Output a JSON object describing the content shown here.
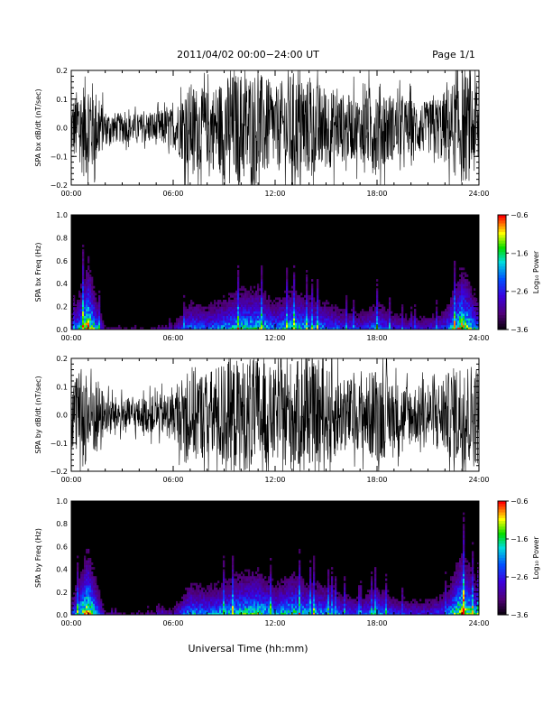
{
  "header": {
    "title": "2011/04/02  00:00−24:00 UT",
    "page_label": "Page 1/1"
  },
  "chart_data": [
    {
      "type": "line",
      "ylabel": "SPA bx dB/dt (nT/sec)",
      "ylim": [
        -0.2,
        0.2
      ],
      "yticks": [
        "−0.2",
        "−0.1",
        "0.0",
        "0.1",
        "0.2"
      ],
      "xticks": [
        "00:00",
        "06:00",
        "12:00",
        "18:00",
        "24:00"
      ],
      "xlim_hours": [
        0,
        24
      ],
      "series": [
        {
          "x_hours": [
            0,
            1,
            2,
            3,
            4,
            5,
            6,
            7,
            8,
            9,
            10,
            11,
            12,
            13,
            14,
            15,
            16,
            17,
            18,
            19,
            20,
            21,
            22,
            23,
            24
          ],
          "envelope_amplitude": [
            0.1,
            0.2,
            0.06,
            0.05,
            0.05,
            0.06,
            0.07,
            0.16,
            0.13,
            0.18,
            0.2,
            0.2,
            0.14,
            0.2,
            0.17,
            0.15,
            0.12,
            0.11,
            0.17,
            0.11,
            0.1,
            0.09,
            0.13,
            0.2,
            0.17
          ]
        }
      ]
    },
    {
      "type": "heatmap",
      "ylabel": "SPA bx Freq (Hz)",
      "ylim": [
        0.0,
        1.0
      ],
      "yticks": [
        "0.0",
        "0.2",
        "0.4",
        "0.6",
        "0.8",
        "1.0"
      ],
      "xticks": [
        "00:00",
        "06:00",
        "12:00",
        "18:00",
        "24:00"
      ],
      "xlim_hours": [
        0,
        24
      ],
      "colorbar": {
        "label": "Log₁₀ Power",
        "ticks": [
          "−0.6",
          "−1.6",
          "−2.6",
          "−3.6"
        ],
        "range": [
          -3.6,
          -0.6
        ]
      },
      "hourly_activity": [
        0.35,
        1.0,
        0.2,
        0.16,
        0.15,
        0.2,
        0.25,
        0.55,
        0.5,
        0.6,
        0.7,
        0.72,
        0.55,
        0.7,
        0.6,
        0.55,
        0.45,
        0.4,
        0.55,
        0.4,
        0.35,
        0.35,
        0.45,
        0.95,
        0.55
      ]
    },
    {
      "type": "line",
      "ylabel": "SPA by dB/dt (nT/sec)",
      "ylim": [
        -0.2,
        0.2
      ],
      "yticks": [
        "−0.2",
        "−0.1",
        "0.0",
        "0.1",
        "0.2"
      ],
      "xticks": [
        "00:00",
        "06:00",
        "12:00",
        "18:00",
        "24:00"
      ],
      "xlim_hours": [
        0,
        24
      ],
      "series": [
        {
          "x_hours": [
            0,
            1,
            2,
            3,
            4,
            5,
            6,
            7,
            8,
            9,
            10,
            11,
            12,
            13,
            14,
            15,
            16,
            17,
            18,
            19,
            20,
            21,
            22,
            23,
            24
          ],
          "envelope_amplitude": [
            0.12,
            0.2,
            0.07,
            0.06,
            0.06,
            0.07,
            0.08,
            0.18,
            0.15,
            0.2,
            0.2,
            0.2,
            0.16,
            0.2,
            0.18,
            0.17,
            0.14,
            0.12,
            0.18,
            0.12,
            0.11,
            0.1,
            0.14,
            0.2,
            0.18
          ]
        }
      ]
    },
    {
      "type": "heatmap",
      "ylabel": "SPA by Freq (Hz)",
      "ylim": [
        0.0,
        1.0
      ],
      "yticks": [
        "0.0",
        "0.2",
        "0.4",
        "0.6",
        "0.8",
        "1.0"
      ],
      "xticks": [
        "00:00",
        "06:00",
        "12:00",
        "18:00",
        "24:00"
      ],
      "xlim_hours": [
        0,
        24
      ],
      "colorbar": {
        "label": "Log₁₀ Power",
        "ticks": [
          "−0.6",
          "−1.6",
          "−2.6",
          "−3.6"
        ],
        "range": [
          -3.6,
          -0.6
        ]
      },
      "hourly_activity": [
        0.4,
        1.0,
        0.22,
        0.18,
        0.17,
        0.22,
        0.28,
        0.6,
        0.55,
        0.62,
        0.72,
        0.75,
        0.58,
        0.72,
        0.62,
        0.58,
        0.48,
        0.42,
        0.58,
        0.42,
        0.38,
        0.38,
        0.48,
        0.95,
        0.58
      ]
    }
  ],
  "footer": {
    "xlabel": "Universal Time (hh:mm)"
  }
}
